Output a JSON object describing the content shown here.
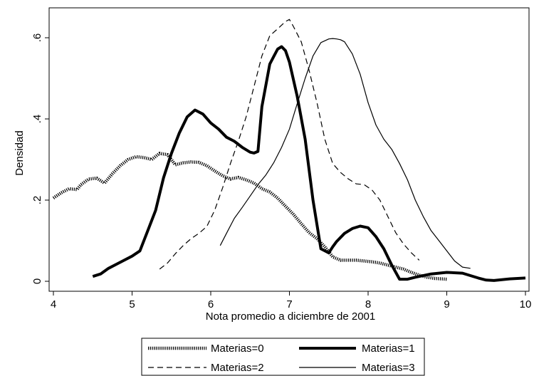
{
  "chart_data": {
    "type": "line",
    "title": "",
    "xlabel": "Nota promedio a diciembre de 2001",
    "ylabel": "Densidad",
    "xlim": [
      4,
      10
    ],
    "ylim": [
      0,
      0.65
    ],
    "xticks": [
      4,
      5,
      6,
      7,
      8,
      9,
      10
    ],
    "yticks": [
      0,
      0.2,
      0.4,
      0.6
    ],
    "ytick_labels": [
      "0",
      ".2",
      ".4",
      ".6"
    ],
    "grid": false,
    "legend_position": "bottom",
    "series": [
      {
        "name": "Materias=0",
        "style": "dotted-heavy",
        "x": [
          4.0,
          4.1,
          4.2,
          4.3,
          4.35,
          4.45,
          4.55,
          4.65,
          4.75,
          4.85,
          4.95,
          5.05,
          5.15,
          5.25,
          5.35,
          5.45,
          5.55,
          5.65,
          5.75,
          5.85,
          5.95,
          6.05,
          6.15,
          6.25,
          6.35,
          6.45,
          6.55,
          6.65,
          6.75,
          6.85,
          6.95,
          7.05,
          7.15,
          7.25,
          7.35,
          7.45,
          7.55,
          7.65,
          7.75,
          7.85,
          7.95,
          8.05,
          8.15,
          8.25,
          8.35,
          8.45,
          8.55,
          8.65,
          8.75,
          8.85,
          9.0
        ],
        "y": [
          0.205,
          0.218,
          0.228,
          0.226,
          0.238,
          0.252,
          0.254,
          0.242,
          0.265,
          0.285,
          0.3,
          0.307,
          0.305,
          0.3,
          0.315,
          0.312,
          0.287,
          0.292,
          0.294,
          0.293,
          0.285,
          0.272,
          0.26,
          0.252,
          0.256,
          0.25,
          0.242,
          0.228,
          0.22,
          0.205,
          0.185,
          0.165,
          0.142,
          0.12,
          0.105,
          0.085,
          0.06,
          0.052,
          0.052,
          0.052,
          0.05,
          0.048,
          0.045,
          0.04,
          0.035,
          0.03,
          0.022,
          0.015,
          0.01,
          0.007,
          0.005
        ]
      },
      {
        "name": "Materias=1",
        "style": "solid-heavy",
        "x": [
          4.5,
          4.6,
          4.7,
          4.8,
          4.9,
          5.0,
          5.1,
          5.2,
          5.3,
          5.4,
          5.5,
          5.6,
          5.7,
          5.8,
          5.9,
          6.0,
          6.1,
          6.2,
          6.3,
          6.4,
          6.5,
          6.55,
          6.6,
          6.65,
          6.75,
          6.85,
          6.9,
          6.95,
          7.0,
          7.1,
          7.2,
          7.3,
          7.4,
          7.5,
          7.55,
          7.6,
          7.7,
          7.8,
          7.9,
          8.0,
          8.1,
          8.2,
          8.3,
          8.4,
          8.5,
          8.6,
          8.8,
          9.0,
          9.2,
          9.4,
          9.5,
          9.6,
          9.8,
          10.0
        ],
        "y": [
          0.012,
          0.018,
          0.032,
          0.042,
          0.052,
          0.062,
          0.075,
          0.125,
          0.175,
          0.255,
          0.315,
          0.365,
          0.405,
          0.422,
          0.412,
          0.39,
          0.375,
          0.355,
          0.345,
          0.33,
          0.318,
          0.316,
          0.32,
          0.43,
          0.535,
          0.572,
          0.578,
          0.568,
          0.54,
          0.455,
          0.35,
          0.2,
          0.08,
          0.07,
          0.085,
          0.098,
          0.118,
          0.13,
          0.136,
          0.132,
          0.11,
          0.08,
          0.04,
          0.005,
          0.005,
          0.01,
          0.018,
          0.022,
          0.02,
          0.008,
          0.003,
          0.002,
          0.006,
          0.008
        ]
      },
      {
        "name": "Materias=2",
        "style": "dashed",
        "x": [
          5.35,
          5.45,
          5.55,
          5.65,
          5.75,
          5.85,
          5.95,
          6.05,
          6.15,
          6.25,
          6.35,
          6.45,
          6.55,
          6.65,
          6.75,
          6.85,
          6.95,
          7.0,
          7.05,
          7.15,
          7.25,
          7.35,
          7.45,
          7.55,
          7.65,
          7.75,
          7.85,
          7.95,
          8.05,
          8.15,
          8.25,
          8.35,
          8.45,
          8.55,
          8.65
        ],
        "y": [
          0.03,
          0.045,
          0.068,
          0.088,
          0.105,
          0.118,
          0.135,
          0.175,
          0.23,
          0.29,
          0.345,
          0.405,
          0.48,
          0.555,
          0.605,
          0.622,
          0.64,
          0.645,
          0.628,
          0.59,
          0.52,
          0.44,
          0.35,
          0.29,
          0.268,
          0.252,
          0.24,
          0.238,
          0.225,
          0.2,
          0.16,
          0.12,
          0.092,
          0.07,
          0.052
        ]
      },
      {
        "name": "Materias=3",
        "style": "solid-thin",
        "x": [
          6.12,
          6.2,
          6.3,
          6.4,
          6.5,
          6.6,
          6.7,
          6.8,
          6.9,
          7.0,
          7.1,
          7.2,
          7.3,
          7.4,
          7.5,
          7.55,
          7.6,
          7.65,
          7.7,
          7.8,
          7.9,
          8.0,
          8.1,
          8.2,
          8.3,
          8.4,
          8.5,
          8.6,
          8.7,
          8.8,
          8.9,
          9.0,
          9.1,
          9.2,
          9.3
        ],
        "y": [
          0.088,
          0.118,
          0.155,
          0.182,
          0.21,
          0.238,
          0.262,
          0.292,
          0.33,
          0.375,
          0.438,
          0.5,
          0.555,
          0.588,
          0.597,
          0.598,
          0.597,
          0.595,
          0.59,
          0.56,
          0.51,
          0.44,
          0.385,
          0.35,
          0.325,
          0.29,
          0.25,
          0.2,
          0.16,
          0.125,
          0.1,
          0.075,
          0.05,
          0.035,
          0.032
        ]
      }
    ]
  }
}
